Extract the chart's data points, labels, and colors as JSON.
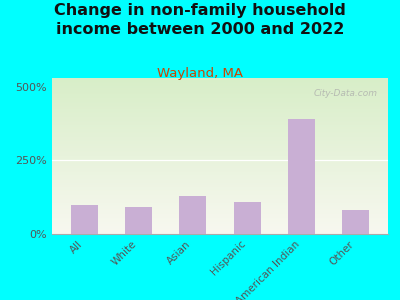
{
  "title": "Change in non-family household\nincome between 2000 and 2022",
  "subtitle": "Wayland, MA",
  "categories": [
    "All",
    "White",
    "Asian",
    "Hispanic",
    "American Indian",
    "Other"
  ],
  "values": [
    100,
    93,
    128,
    108,
    390,
    82
  ],
  "bar_color": "#c9afd4",
  "background_top": "#d8eec8",
  "background_bottom": "#f8f8f0",
  "fig_bg_color": "#00FFFF",
  "title_fontsize": 11.5,
  "subtitle_fontsize": 9.5,
  "subtitle_color": "#cc4400",
  "yticks": [
    0,
    250,
    500
  ],
  "ytick_labels": [
    "0%",
    "250%",
    "500%"
  ],
  "ylim": [
    0,
    530
  ],
  "watermark": "City-Data.com"
}
